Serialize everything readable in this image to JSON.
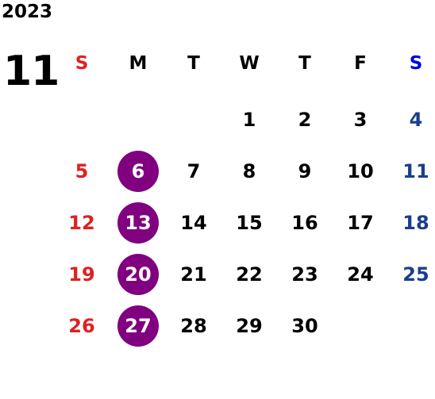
{
  "year": "2023",
  "month": "11",
  "weekdays": [
    "S",
    "M",
    "T",
    "W",
    "T",
    "F",
    "S"
  ],
  "weeks": [
    [
      "",
      "",
      "",
      "1",
      "2",
      "3",
      "4"
    ],
    [
      "5",
      "6",
      "7",
      "8",
      "9",
      "10",
      "11"
    ],
    [
      "12",
      "13",
      "14",
      "15",
      "16",
      "17",
      "18"
    ],
    [
      "19",
      "20",
      "21",
      "22",
      "23",
      "24",
      "25"
    ],
    [
      "26",
      "27",
      "28",
      "29",
      "30",
      "",
      ""
    ]
  ],
  "highlighted_days": [
    "6",
    "13",
    "20",
    "27"
  ],
  "colors": {
    "sunday": "#e02020",
    "saturday_header": "#0000e0",
    "saturday": "#1a3e8c",
    "weekday": "#000000",
    "highlight": "#800080"
  }
}
